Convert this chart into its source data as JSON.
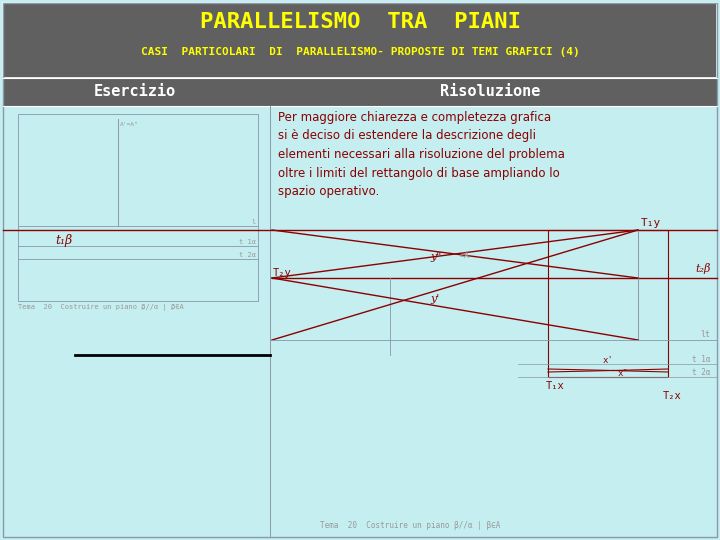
{
  "title": "PARALLELISMO  TRA  PIANI",
  "subtitle": "CASI  PARTICOLARI  DI  PARALLELISMO- PROPOSTE DI TEMI GRAFICI (4)",
  "header_bg": "#606060",
  "header_text_color": "#ffff00",
  "body_bg": "#c5eef0",
  "left_label": "Esercizio",
  "right_label": "Risoluzione",
  "label_color": "#ffffff",
  "red": "#8b0000",
  "gray": "#8899aa",
  "darkgray": "#999999",
  "body_text": "Per maggiore chiarezza e completezza grafica\nsi è deciso di estendere la descrizione degli\nelementi necessari alla risoluzione del problema\noltre i limiti del rettangolo di base ampliando lo\nspazio operativo.",
  "note_text_left": "Tema  20  Costruire un piano β//α | β∈A",
  "note_text_bottom": "Tema  20  Costruire un piano β//α | β∈A"
}
